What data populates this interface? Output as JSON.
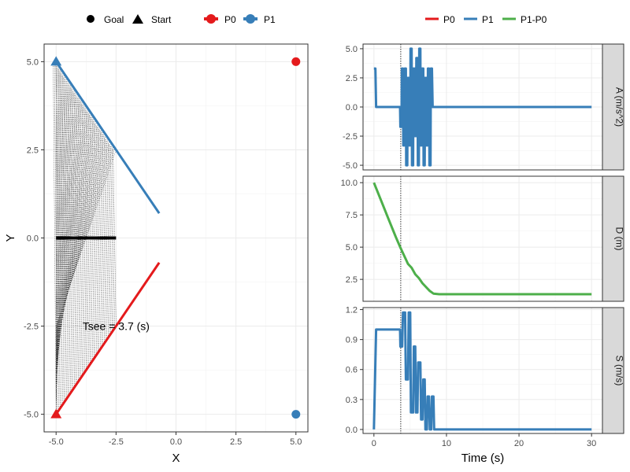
{
  "colors": {
    "p0": "#e41a1c",
    "p1": "#377eb8",
    "diff": "#4daf4a",
    "grid": "#ebebeb",
    "strip_bg": "#d9d9d9"
  },
  "legend_left": {
    "shape_entries": [
      {
        "label": "Goal",
        "shape": "circle"
      },
      {
        "label": "Start",
        "shape": "triangle"
      }
    ],
    "color_entries": [
      {
        "label": "P0",
        "color": "#e41a1c"
      },
      {
        "label": "P1",
        "color": "#377eb8"
      }
    ]
  },
  "legend_right": {
    "entries": [
      {
        "label": "P0",
        "color": "#e41a1c"
      },
      {
        "label": "P1",
        "color": "#377eb8"
      },
      {
        "label": "P1-P0",
        "color": "#4daf4a"
      }
    ]
  },
  "chart_data": [
    {
      "type": "scatter",
      "xlabel": "X",
      "ylabel": "Y",
      "xlim": [
        -5.5,
        5.5
      ],
      "ylim": [
        -5.5,
        5.5
      ],
      "xticks": [
        -5.0,
        -2.5,
        0.0,
        2.5,
        5.0
      ],
      "xtick_labels": [
        "-5.0",
        "-2.5",
        "0.0",
        "2.5",
        "5.0"
      ],
      "yticks": [
        -5.0,
        -2.5,
        0.0,
        2.5,
        5.0
      ],
      "ytick_labels": [
        "-5.0",
        "-2.5",
        "0.0",
        "2.5",
        "5.0"
      ],
      "grid": true,
      "series": [
        {
          "name": "P0",
          "start": [
            -5,
            -5
          ],
          "goal": [
            5,
            5
          ],
          "path": [
            [
              -5,
              -5
            ],
            [
              -0.7,
              -0.7
            ]
          ]
        },
        {
          "name": "P1",
          "start": [
            -5,
            5
          ],
          "goal": [
            5,
            -5
          ],
          "path": [
            [
              -5,
              5
            ],
            [
              -0.7,
              0.7
            ]
          ]
        }
      ],
      "see_segment": {
        "x": [
          -5,
          -2.5
        ],
        "y": 0
      },
      "annotation": {
        "text": "Tsee = 3.7 (s)",
        "x": -2.5,
        "y": -2.5
      }
    },
    {
      "type": "line",
      "xlabel": "Time (s)",
      "xlim": [
        -1.5,
        31.5
      ],
      "xticks": [
        0,
        10,
        20,
        30
      ],
      "xtick_labels": [
        "0",
        "10",
        "20",
        "30"
      ],
      "vline": 3.7,
      "grid": true,
      "facets": [
        {
          "strip": "A (m/s^2)",
          "ylim": [
            -5.4,
            5.4
          ],
          "yticks": [
            -5.0,
            -2.5,
            0.0,
            2.5,
            5.0
          ],
          "ytick_labels": [
            "-5.0",
            "-2.5",
            "0.0",
            "2.5",
            "5.0"
          ],
          "series": [
            {
              "name": "P1",
              "x": [
                0,
                0.2,
                0.3,
                3.6,
                3.65,
                3.8,
                3.85,
                4.0,
                4.05,
                4.2,
                4.25,
                4.4,
                4.45,
                4.6,
                4.65,
                4.8,
                4.85,
                5.0,
                5.05,
                5.2,
                5.25,
                5.4,
                5.45,
                5.6,
                5.65,
                5.8,
                5.85,
                6.0,
                6.05,
                6.2,
                6.25,
                6.4,
                6.45,
                6.6,
                6.65,
                6.8,
                6.85,
                7.0,
                7.05,
                7.2,
                7.25,
                7.4,
                7.45,
                7.6,
                7.65,
                7.8,
                7.85,
                8.0,
                8.1,
                30
              ],
              "y": [
                3.3,
                3.3,
                0,
                0,
                -1.7,
                -1.7,
                3.3,
                3.3,
                -3.3,
                -3.3,
                3.3,
                3.3,
                -5,
                -5,
                2.5,
                2.5,
                -3.3,
                -3.3,
                5,
                5,
                -5,
                -5,
                3.3,
                3.3,
                -2.5,
                -2.5,
                4.2,
                4.2,
                -5,
                -5,
                5,
                5,
                -3.3,
                -3.3,
                3.3,
                3.3,
                -5,
                -5,
                2.5,
                2.5,
                -3.3,
                -3.3,
                3.3,
                3.3,
                -5,
                -5,
                3.3,
                3.3,
                0,
                0
              ]
            }
          ]
        },
        {
          "strip": "D (m)",
          "ylim": [
            0.8,
            10.5
          ],
          "yticks": [
            2.5,
            5.0,
            7.5,
            10.0
          ],
          "ytick_labels": [
            "2.5",
            "5.0",
            "7.5",
            "10.0"
          ],
          "series": [
            {
              "name": "P1-P0",
              "x": [
                0,
                1,
                2,
                3,
                3.7,
                4.2,
                4.7,
                5.2,
                5.7,
                6.2,
                6.7,
                7.2,
                7.7,
                8.2,
                9,
                30
              ],
              "y": [
                10,
                8.6,
                7.2,
                5.8,
                4.9,
                4.3,
                3.7,
                3.4,
                2.9,
                2.6,
                2.2,
                1.9,
                1.6,
                1.4,
                1.35,
                1.35
              ]
            }
          ]
        },
        {
          "strip": "S (m/s)",
          "ylim": [
            -0.04,
            1.22
          ],
          "yticks": [
            0.0,
            0.3,
            0.6,
            0.9,
            1.2
          ],
          "ytick_labels": [
            "0.0",
            "0.3",
            "0.6",
            "0.9",
            "1.2"
          ],
          "series": [
            {
              "name": "P1",
              "x": [
                0,
                0.3,
                3.6,
                3.65,
                3.9,
                4.0,
                4.3,
                4.4,
                4.7,
                4.8,
                5.0,
                5.1,
                5.4,
                5.5,
                5.7,
                5.8,
                6.0,
                6.1,
                6.4,
                6.5,
                6.7,
                6.8,
                7.0,
                7.1,
                7.3,
                7.4,
                7.6,
                7.7,
                7.9,
                8.0,
                8.2,
                8.3,
                30
              ],
              "y": [
                0,
                1.0,
                1.0,
                0.83,
                0.83,
                1.17,
                1.17,
                0.5,
                0.5,
                1.17,
                1.17,
                0.17,
                0.17,
                0.83,
                0.83,
                0.17,
                0.17,
                0.67,
                0.67,
                0.1,
                0.1,
                0.5,
                0.5,
                0.0,
                0.0,
                0.33,
                0.33,
                0.0,
                0.0,
                0.33,
                0.33,
                0,
                0
              ]
            }
          ]
        }
      ]
    }
  ]
}
